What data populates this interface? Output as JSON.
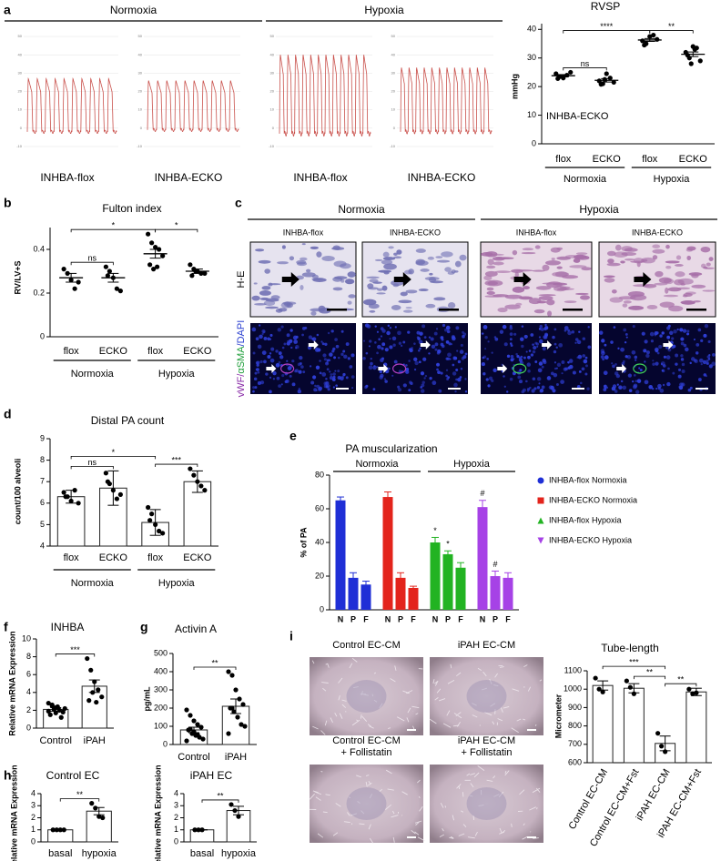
{
  "chart_data": [
    {
      "type": "trace",
      "panel": "a",
      "ylim": [
        -12,
        55
      ],
      "yticks": [
        50,
        40,
        30,
        20,
        10,
        0,
        -10
      ],
      "groups": [
        {
          "title": "Normoxia",
          "traces": [
            {
              "label": "INHBA-flox",
              "peak": 27,
              "trough": -2,
              "cycles": 10
            },
            {
              "label": "INHBA-ECKO",
              "peak": 26,
              "trough": -1,
              "cycles": 10
            }
          ]
        },
        {
          "title": "Hypoxia",
          "traces": [
            {
              "label": "INHBA-flox",
              "peak": 40,
              "trough": -3,
              "cycles": 12
            },
            {
              "label": "INHBA-ECKO",
              "peak": 33,
              "trough": -2,
              "cycles": 12
            }
          ]
        }
      ]
    },
    {
      "type": "dot",
      "title": "RVSP",
      "ylabel": "mmHg",
      "annotation": "INHBA-ECKO",
      "categories": [
        "flox",
        "ECKO",
        "flox",
        "ECKO"
      ],
      "groups": [
        "Normoxia",
        "Hypoxia"
      ],
      "ylim": [
        0,
        42
      ],
      "yticks": [
        0,
        10,
        20,
        30,
        40
      ],
      "color": "#000000",
      "points": [
        [
          24.5,
          23.5,
          23,
          24,
          25,
          22.8
        ],
        [
          22,
          21,
          24.5,
          23,
          21.5,
          20.8,
          22.5
        ],
        [
          36,
          35,
          37.5,
          38,
          36.5,
          34.5
        ],
        [
          32,
          30,
          34,
          33.5,
          29,
          31,
          28,
          33
        ]
      ],
      "means": [
        23.8,
        22.2,
        36.3,
        31.3
      ],
      "errors": [
        0.4,
        0.6,
        0.5,
        0.8
      ],
      "brackets": [
        {
          "from": 0,
          "to": 1,
          "label": "ns"
        },
        {
          "from": 2,
          "to": 3,
          "label": "**"
        },
        {
          "from": 0,
          "to": 2,
          "label": "****"
        }
      ]
    },
    {
      "type": "dot",
      "panel": "b",
      "title": "Fulton index",
      "ylabel": "RV/LV+S",
      "categories": [
        "flox",
        "ECKO",
        "flox",
        "ECKO"
      ],
      "groups": [
        "Normoxia",
        "Hypoxia"
      ],
      "ylim": [
        0,
        0.5
      ],
      "yticks": [
        0,
        0.2,
        0.4
      ],
      "color": "#000000",
      "points": [
        [
          0.31,
          0.29,
          0.26,
          0.22,
          0.25
        ],
        [
          0.32,
          0.3,
          0.27,
          0.22,
          0.21,
          0.28
        ],
        [
          0.47,
          0.43,
          0.41,
          0.4,
          0.37,
          0.33,
          0.31,
          0.32
        ],
        [
          0.33,
          0.31,
          0.3,
          0.29,
          0.29,
          0.28,
          0.3
        ]
      ],
      "means": [
        0.27,
        0.27,
        0.38,
        0.3
      ],
      "errors": [
        0.02,
        0.02,
        0.02,
        0.01
      ],
      "brackets": [
        {
          "from": 0,
          "to": 1,
          "label": "ns"
        },
        {
          "from": 2,
          "to": 3,
          "label": "*"
        },
        {
          "from": 0,
          "to": 2,
          "label": "*"
        }
      ]
    },
    {
      "type": "bar",
      "panel": "d",
      "title": "Distal PA count",
      "ylabel": "count/100 alveoli",
      "categories": [
        "flox",
        "ECKO",
        "flox",
        "ECKO"
      ],
      "groups": [
        "Normoxia",
        "Hypoxia"
      ],
      "ylim": [
        4,
        9
      ],
      "yticks": [
        4,
        5,
        6,
        7,
        8,
        9
      ],
      "color": "#000000",
      "bar_color": "#ffffff",
      "points": [
        [
          6.5,
          6.3,
          6.1,
          6.6,
          6.0,
          6.3
        ],
        [
          7.4,
          6.9,
          6.6,
          6.2,
          6.4,
          7.0
        ],
        [
          5.8,
          5.5,
          5.0,
          4.7,
          4.6,
          5.2
        ],
        [
          7.6,
          7.3,
          7.0,
          6.8,
          6.6
        ]
      ],
      "means": [
        6.3,
        6.7,
        5.1,
        7.0
      ],
      "errors": [
        0.3,
        0.8,
        0.6,
        0.5
      ],
      "brackets": [
        {
          "from": 0,
          "to": 1,
          "label": "ns"
        },
        {
          "from": 2,
          "to": 3,
          "label": "***"
        },
        {
          "from": 0,
          "to": 2,
          "label": "*"
        }
      ]
    },
    {
      "type": "grouped_bar",
      "panel": "e",
      "title": "PA muscularization",
      "ylabel": "% of PA",
      "categories": [
        "N",
        "P",
        "F"
      ],
      "groups": [
        "Normoxia",
        "Hypoxia"
      ],
      "ylim": [
        0,
        80
      ],
      "yticks": [
        0,
        20,
        40,
        60,
        80
      ],
      "series": [
        {
          "name": "INHBA-flox Normoxia",
          "color": "#1f2fd6",
          "marker": "circle",
          "values": [
            65,
            19,
            15
          ],
          "errors": [
            2,
            3,
            2
          ]
        },
        {
          "name": "INHBA-ECKO Normoxia",
          "color": "#e3241c",
          "marker": "square",
          "values": [
            67,
            19,
            13
          ],
          "errors": [
            3,
            3,
            1
          ]
        },
        {
          "name": "INHBA-flox Hypoxia",
          "color": "#22b322",
          "marker": "triangle",
          "values": [
            40,
            33,
            25
          ],
          "errors": [
            3,
            2,
            3
          ]
        },
        {
          "name": "INHBA-ECKO Hypoxia",
          "color": "#a642e6",
          "marker": "triangle-down",
          "values": [
            61,
            20,
            19
          ],
          "errors": [
            4,
            3,
            3
          ]
        }
      ],
      "annotations": [
        {
          "series": 2,
          "index": 0,
          "label": "*"
        },
        {
          "series": 2,
          "index": 1,
          "label": "*"
        },
        {
          "series": 3,
          "index": 0,
          "label": "#"
        },
        {
          "series": 3,
          "index": 1,
          "label": "#"
        }
      ]
    },
    {
      "type": "bar",
      "panel": "f",
      "title": "INHBA",
      "ylabel": "Relative mRNA Expression",
      "categories": [
        "Control",
        "iPAH"
      ],
      "ylim": [
        0,
        10
      ],
      "yticks": [
        0,
        2,
        4,
        6,
        8,
        10
      ],
      "color": "#000000",
      "bar_color": "#ffffff",
      "points": [
        [
          2.8,
          2.5,
          2.3,
          2.0,
          1.8,
          1.5,
          2.1,
          2.4,
          1.2,
          2.2,
          1.9,
          2.6,
          1.7
        ],
        [
          7.8,
          6.5,
          5.2,
          4.3,
          3.5,
          3.1,
          4.0,
          2.9
        ]
      ],
      "means": [
        2.1,
        4.7
      ],
      "errors": [
        0.2,
        0.7
      ],
      "brackets": [
        {
          "from": 0,
          "to": 1,
          "label": "***"
        }
      ]
    },
    {
      "type": "bar",
      "panel": "g",
      "title": "Activin A",
      "ylabel": "pg/mL",
      "categories": [
        "Control",
        "iPAH"
      ],
      "ylim": [
        0,
        500
      ],
      "yticks": [
        0,
        100,
        200,
        300,
        400,
        500
      ],
      "color": "#000000",
      "bar_color": "#ffffff",
      "points": [
        [
          190,
          160,
          130,
          110,
          95,
          80,
          60,
          50,
          40,
          30,
          20,
          85,
          70,
          55
        ],
        [
          400,
          380,
          300,
          250,
          220,
          200,
          180,
          150,
          110,
          100,
          60,
          200
        ]
      ],
      "means": [
        80,
        210
      ],
      "errors": [
        15,
        40
      ],
      "brackets": [
        {
          "from": 0,
          "to": 1,
          "label": "**"
        }
      ]
    },
    {
      "type": "bar",
      "panel": "h",
      "title": "Control EC",
      "ylabel": "Relative mRNA Expression",
      "categories": [
        "basal",
        "hypoxia"
      ],
      "ylim": [
        0,
        4
      ],
      "yticks": [
        0,
        1,
        2,
        3,
        4
      ],
      "color": "#000000",
      "bar_color": "#ffffff",
      "points": [
        [
          1,
          1,
          1,
          1
        ],
        [
          3.2,
          2.8,
          2.1,
          2.0
        ]
      ],
      "means": [
        1,
        2.55
      ],
      "errors": [
        0,
        0.3
      ],
      "brackets": [
        {
          "from": 0,
          "to": 1,
          "label": "**"
        }
      ]
    },
    {
      "type": "bar",
      "title": "iPAH EC",
      "ylabel": "Relative mRNA Expression",
      "categories": [
        "basal",
        "hypoxia"
      ],
      "ylim": [
        0,
        4
      ],
      "yticks": [
        0,
        1,
        2,
        3,
        4
      ],
      "color": "#000000",
      "bar_color": "#ffffff",
      "points": [
        [
          1,
          1,
          1
        ],
        [
          3.1,
          2.6,
          2.1
        ]
      ],
      "means": [
        1,
        2.6
      ],
      "errors": [
        0,
        0.35
      ],
      "brackets": [
        {
          "from": 0,
          "to": 1,
          "label": "**"
        }
      ]
    },
    {
      "type": "bar",
      "title": "Tube-length",
      "ylabel": "Micrometer",
      "categories": [
        "Control EC-CM",
        "Control EC-CM+Fst",
        "iPAH EC-CM",
        "iPAH EC-CM+Fst"
      ],
      "ylim": [
        600,
        1100
      ],
      "yticks": [
        600,
        700,
        800,
        900,
        1000,
        1100
      ],
      "color": "#000000",
      "bar_color": "#ffffff",
      "points": [
        [
          1060,
          1000,
          985
        ],
        [
          1045,
          1010,
          975
        ],
        [
          760,
          690,
          660
        ],
        [
          1000,
          975,
          980
        ]
      ],
      "means": [
        1020,
        1005,
        705,
        985
      ],
      "errors": [
        25,
        25,
        40,
        20
      ],
      "brackets": [
        {
          "from": 1,
          "to": 2,
          "label": "**"
        },
        {
          "from": 2,
          "to": 3,
          "label": "**"
        },
        {
          "from": 0,
          "to": 2,
          "label": "***"
        }
      ]
    }
  ],
  "image_panels": [
    {
      "panel": "c",
      "groups": [
        {
          "title": "Normoxia",
          "columns": [
            "INHBA-flox",
            "INHBA-ECKO"
          ]
        },
        {
          "title": "Hypoxia",
          "columns": [
            "INHBA-flox",
            "INHBA-ECKO"
          ]
        }
      ],
      "rows": [
        {
          "parts": [
            "H-E"
          ],
          "colors": [
            "#000000"
          ]
        },
        {
          "parts": [
            "vWF/",
            "αSMA",
            "/DAPI"
          ],
          "colors": [
            "#8a2da8",
            "#1f9e3a",
            "#2a3fd0"
          ]
        }
      ]
    },
    {
      "panel": "i",
      "labels": [
        [
          "Control EC-CM"
        ],
        [
          "iPAH EC-CM"
        ],
        [
          "Control EC-CM",
          "+ Follistatin"
        ],
        [
          "iPAH EC-CM",
          "+ Follistatin"
        ]
      ]
    }
  ]
}
